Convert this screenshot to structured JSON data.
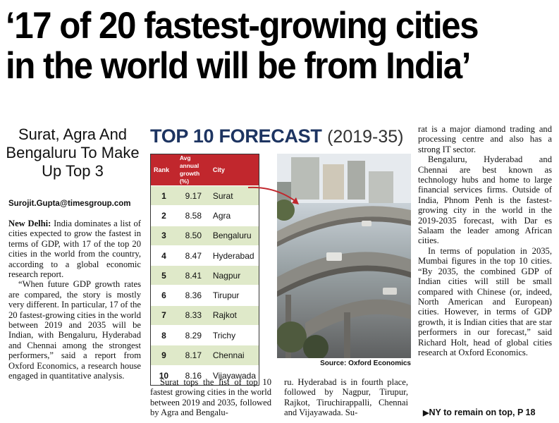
{
  "headline": {
    "line1": "‘17 of 20 fastest-growing cities",
    "line2": "in the world will be from India’"
  },
  "deck": "Surat, Agra And Bengaluru To Make Up Top 3",
  "byline": "Surojit.Gupta@timesgroup.com",
  "box": {
    "title_bold": "TOP 10 FORECAST",
    "title_years": "(2019-35)",
    "source": "Source: Oxford Economics"
  },
  "table": {
    "headers": [
      "Rank",
      "Avg annual growth (%)",
      "City"
    ],
    "rows": [
      [
        "1",
        "9.17",
        "Surat"
      ],
      [
        "2",
        "8.58",
        "Agra"
      ],
      [
        "3",
        "8.50",
        "Bengaluru"
      ],
      [
        "4",
        "8.47",
        "Hyderabad"
      ],
      [
        "5",
        "8.41",
        "Nagpur"
      ],
      [
        "6",
        "8.36",
        "Tirupur"
      ],
      [
        "7",
        "8.33",
        "Rajkot"
      ],
      [
        "8",
        "8.29",
        "Trichy"
      ],
      [
        "9",
        "8.17",
        "Chennai"
      ],
      [
        "10",
        "8.16",
        "Vijayawada"
      ]
    ]
  },
  "col1": {
    "dateline": "New Delhi:",
    "p1": "India dominates a list of cities expected to grow the fastest in terms of GDP, with 17 of the top 20 cities in the world from the country, according to a global economic research report.",
    "p2": "“When future GDP growth rates are compared, the story is mostly very different. In particular, 17 of the 20 fastest-growing cities in the world between 2019 and 2035 will be Indian, with Bengaluru, Hyderabad and Chennai among the strongest performers,” said a report from Oxford Economics, a research house engaged in quantitative analysis."
  },
  "col2": {
    "p1": "Surat tops the list of top 10 fastest growing cities in the world between 2019 and 2035, followed by Agra and Bengalu-"
  },
  "col3": {
    "p1": "ru. Hyderabad is in fourth place, followed by Nagpur, Tirupur, Rajkot, Tiruchirappalli, Chennai and Vijayawada. Su-"
  },
  "col4": {
    "p1": "rat is a major diamond trading and processing centre and also has a strong IT sector.",
    "p2": "Bengaluru, Hyderabad and Chennai are best known as technology hubs and home to large financial services firms. Outside of India, Phnom Penh is the fastest-growing city in the world in the 2019-2035 forecast, with Dar es Salaam the leader among African cities.",
    "p3": "In terms of population in 2035, Mumbai figures in the top 10 cities. “By 2035, the combined GDP of Indian cities will still be small compared with Chinese (or, indeed, North American and European) cities. However, in terms of GDP growth, it is Indian cities that are star performers in our forecast,” said Richard Holt, head of global cities research at Oxford Economics."
  },
  "jump": {
    "arrow": "▶",
    "text": "NY to remain on top, P 18"
  }
}
